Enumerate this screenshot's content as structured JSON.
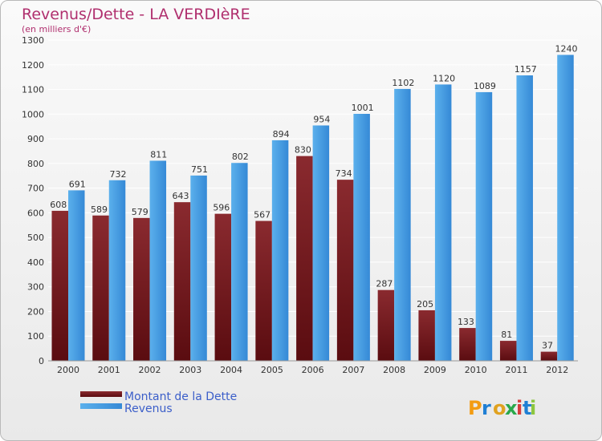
{
  "chart_data": {
    "type": "bar",
    "title": "Revenus/Dette - LA VERDIèRE",
    "subtitle": "(en milliers d'€)",
    "categories": [
      "2000",
      "2001",
      "2002",
      "2003",
      "2004",
      "2005",
      "2006",
      "2007",
      "2008",
      "2009",
      "2010",
      "2011",
      "2012"
    ],
    "series": [
      {
        "name": "Montant de la Dette",
        "color": "#7a1a1e",
        "values": [
          608,
          589,
          579,
          643,
          596,
          567,
          830,
          734,
          287,
          205,
          133,
          81,
          37
        ]
      },
      {
        "name": "Revenus",
        "color": "#3d9be3",
        "values": [
          691,
          732,
          811,
          751,
          802,
          894,
          954,
          1001,
          1102,
          1120,
          1089,
          1157,
          1240
        ]
      }
    ],
    "ylim": [
      0,
      1300
    ],
    "yticks": [
      0,
      100,
      200,
      300,
      400,
      500,
      600,
      700,
      800,
      900,
      1000,
      1100,
      1200,
      1300
    ],
    "grid": true,
    "legend_position": "bottom-left"
  },
  "logo": {
    "text": "Proxiti",
    "colors": [
      "#f39c12",
      "#1f7fd4",
      "#e0a220",
      "#2aa84a",
      "#d63c3c",
      "#1f7fd4",
      "#8cc63f"
    ]
  }
}
